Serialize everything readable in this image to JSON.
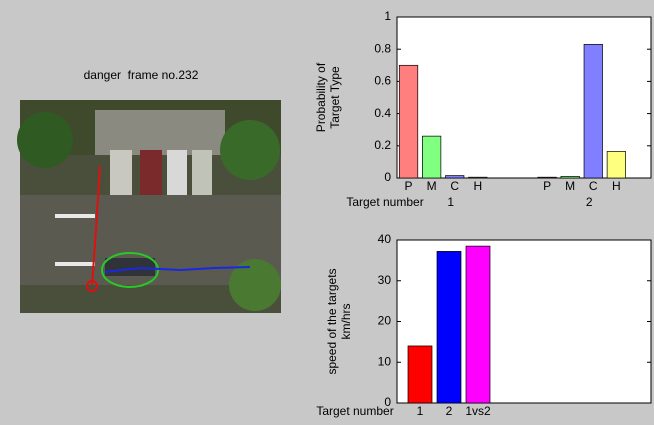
{
  "figure": {
    "image_title": "danger  frame no.232"
  },
  "chart_data": [
    {
      "type": "bar",
      "ylabel": [
        "Probability of",
        "Target Type"
      ],
      "xlabel": "Target number",
      "group_labels": [
        "1",
        "2"
      ],
      "categories": [
        "P",
        "M",
        "C",
        "H",
        "P",
        "M",
        "C",
        "H"
      ],
      "x": [
        1,
        2,
        3,
        4,
        7,
        8,
        9,
        10
      ],
      "values": [
        0.7,
        0.26,
        0.015,
        0.005,
        0.005,
        0.01,
        0.83,
        0.165
      ],
      "colors": [
        "#ff7f7f",
        "#80ff80",
        "#7f7fff",
        "#ffff7f",
        "#ff7f7f",
        "#80ff80",
        "#7f7fff",
        "#ffff7f"
      ],
      "xlim": [
        0.5,
        11.5
      ],
      "ylim": [
        0,
        1
      ],
      "yticks": [
        0,
        0.2,
        0.4,
        0.6,
        0.8,
        1
      ]
    },
    {
      "type": "bar",
      "ylabel": [
        "speed of the targets",
        "km/hrs"
      ],
      "xlabel": "Target number",
      "categories": [
        "1",
        "2",
        "1vs2"
      ],
      "values": [
        14,
        37.2,
        38.5
      ],
      "colors": [
        "#ff0000",
        "#0000ff",
        "#ff00ff"
      ],
      "ylim": [
        0,
        40
      ],
      "yticks": [
        0,
        10,
        20,
        30,
        40
      ]
    }
  ]
}
